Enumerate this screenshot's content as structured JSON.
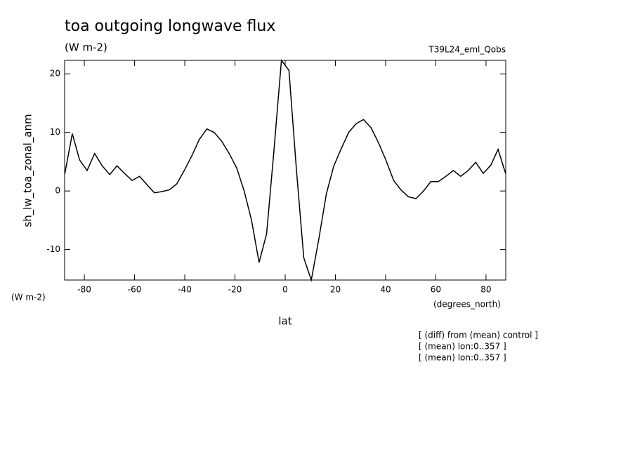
{
  "chart_data": {
    "type": "line",
    "title": "toa outgoing longwave flux",
    "subtitle": "(W m-2)",
    "run_label": "T39L24_eml_Qobs",
    "y_label": "sh_lw_toa_zonal_anm",
    "y_units": "(W m-2)",
    "x_label": "lat",
    "x_units": "(degrees_north)",
    "notes": [
      "[ (diff) from (mean) control ]",
      "[ (mean) lon:0..357 ]",
      "[ (mean) lon:0..357 ]"
    ],
    "x": [
      -87.8,
      -84.8,
      -81.9,
      -78.9,
      -75.9,
      -72.9,
      -69.9,
      -67.0,
      -64.0,
      -61.0,
      -58.0,
      -55.1,
      -52.1,
      -49.1,
      -46.1,
      -43.2,
      -40.2,
      -37.2,
      -34.2,
      -31.2,
      -28.3,
      -25.3,
      -22.3,
      -19.3,
      -16.4,
      -13.4,
      -10.4,
      -7.4,
      -4.5,
      -1.5,
      1.5,
      4.5,
      7.4,
      10.4,
      13.4,
      16.4,
      19.3,
      22.3,
      25.3,
      28.3,
      31.2,
      34.2,
      37.2,
      40.2,
      43.2,
      46.1,
      49.1,
      52.1,
      55.1,
      58.0,
      61.0,
      64.0,
      67.0,
      69.9,
      72.9,
      75.9,
      78.9,
      81.9,
      84.8,
      87.8
    ],
    "series": [
      {
        "name": "sh_lw_toa_zonal_anm",
        "color": "#000000",
        "values": [
          2.9,
          9.8,
          5.3,
          3.5,
          6.4,
          4.3,
          2.8,
          4.3,
          3.0,
          1.8,
          2.5,
          1.1,
          -0.3,
          -0.1,
          0.2,
          1.2,
          3.5,
          6.0,
          8.8,
          10.6,
          10.0,
          8.5,
          6.4,
          3.9,
          0.1,
          -5.0,
          -12.2,
          -7.3,
          6.8,
          22.3,
          20.6,
          3.5,
          -11.4,
          -15.2,
          -8.2,
          -0.5,
          4.2,
          7.2,
          10.0,
          11.5,
          12.2,
          10.8,
          8.2,
          5.2,
          1.8,
          0.2,
          -1.0,
          -1.3,
          0.0,
          1.6,
          1.6,
          2.5,
          3.5,
          2.5,
          3.5,
          4.9,
          3.0,
          4.4,
          7.1,
          3.0
        ]
      }
    ],
    "xlim": [
      -87.86,
      87.86
    ],
    "ylim": [
      -15.2,
      22.3
    ],
    "xticks": [
      -80,
      -60,
      -40,
      -20,
      0,
      20,
      40,
      60,
      80
    ],
    "yticks": [
      -10,
      0,
      10,
      20
    ]
  }
}
